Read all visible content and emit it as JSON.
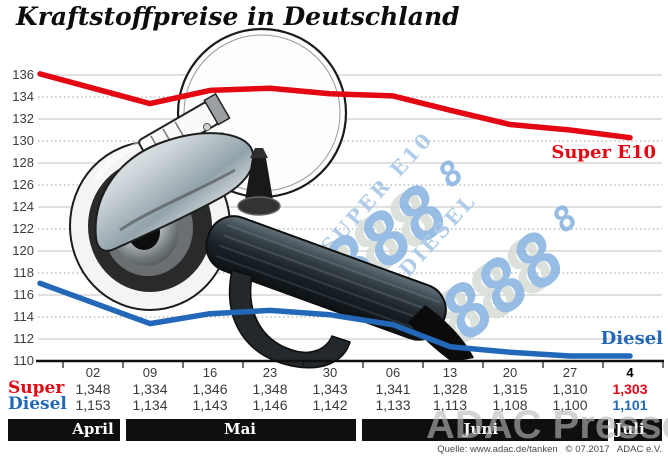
{
  "title": "Kraftstoffpreise in Deutschland",
  "source": "Quelle: www.adac.de/tanken   © 07.2017   ADAC e.V.",
  "press_watermark": "ADAC Presse",
  "display_panel": {
    "super_label": "SUPER E10",
    "diesel_label": "DIESEL",
    "digits": "888",
    "decimal_digit": "8"
  },
  "chart_data": {
    "type": "line",
    "title": "Kraftstoffpreise in Deutschland",
    "categories": [
      "02",
      "09",
      "16",
      "23",
      "30",
      "06",
      "13",
      "20",
      "27",
      "4"
    ],
    "months": [
      {
        "label": "April",
        "columns": [
          0
        ]
      },
      {
        "label": "Mai",
        "columns": [
          1,
          2,
          3,
          4
        ]
      },
      {
        "label": "Juni",
        "columns": [
          5,
          6,
          7,
          8
        ]
      },
      {
        "label": "Juli",
        "columns": [
          9
        ]
      }
    ],
    "ylim": [
      110,
      136
    ],
    "ytick_step": 2,
    "grid": true,
    "legend_position": "right-on-line",
    "series": [
      {
        "name": "Super",
        "legend": "Super E10",
        "color": "#e30613",
        "values": [
          134.8,
          133.4,
          134.6,
          134.8,
          134.3,
          134.1,
          132.8,
          131.5,
          131.0,
          130.3
        ],
        "table_label": "Super",
        "table_values": [
          "1,348",
          "1,334",
          "1,346",
          "1,348",
          "1,343",
          "1,341",
          "1,328",
          "1,315",
          "1,310",
          "1,303"
        ]
      },
      {
        "name": "Diesel",
        "legend": "Diesel",
        "color": "#2368b8",
        "values": [
          115.3,
          113.4,
          114.3,
          114.6,
          114.2,
          113.3,
          111.3,
          110.8,
          110.0,
          110.1
        ],
        "table_label": "Diesel",
        "table_values": [
          "1,153",
          "1,134",
          "1,143",
          "1,146",
          "1,142",
          "1,133",
          "1,113",
          "1,108",
          "1,100",
          "1,101"
        ]
      }
    ]
  }
}
